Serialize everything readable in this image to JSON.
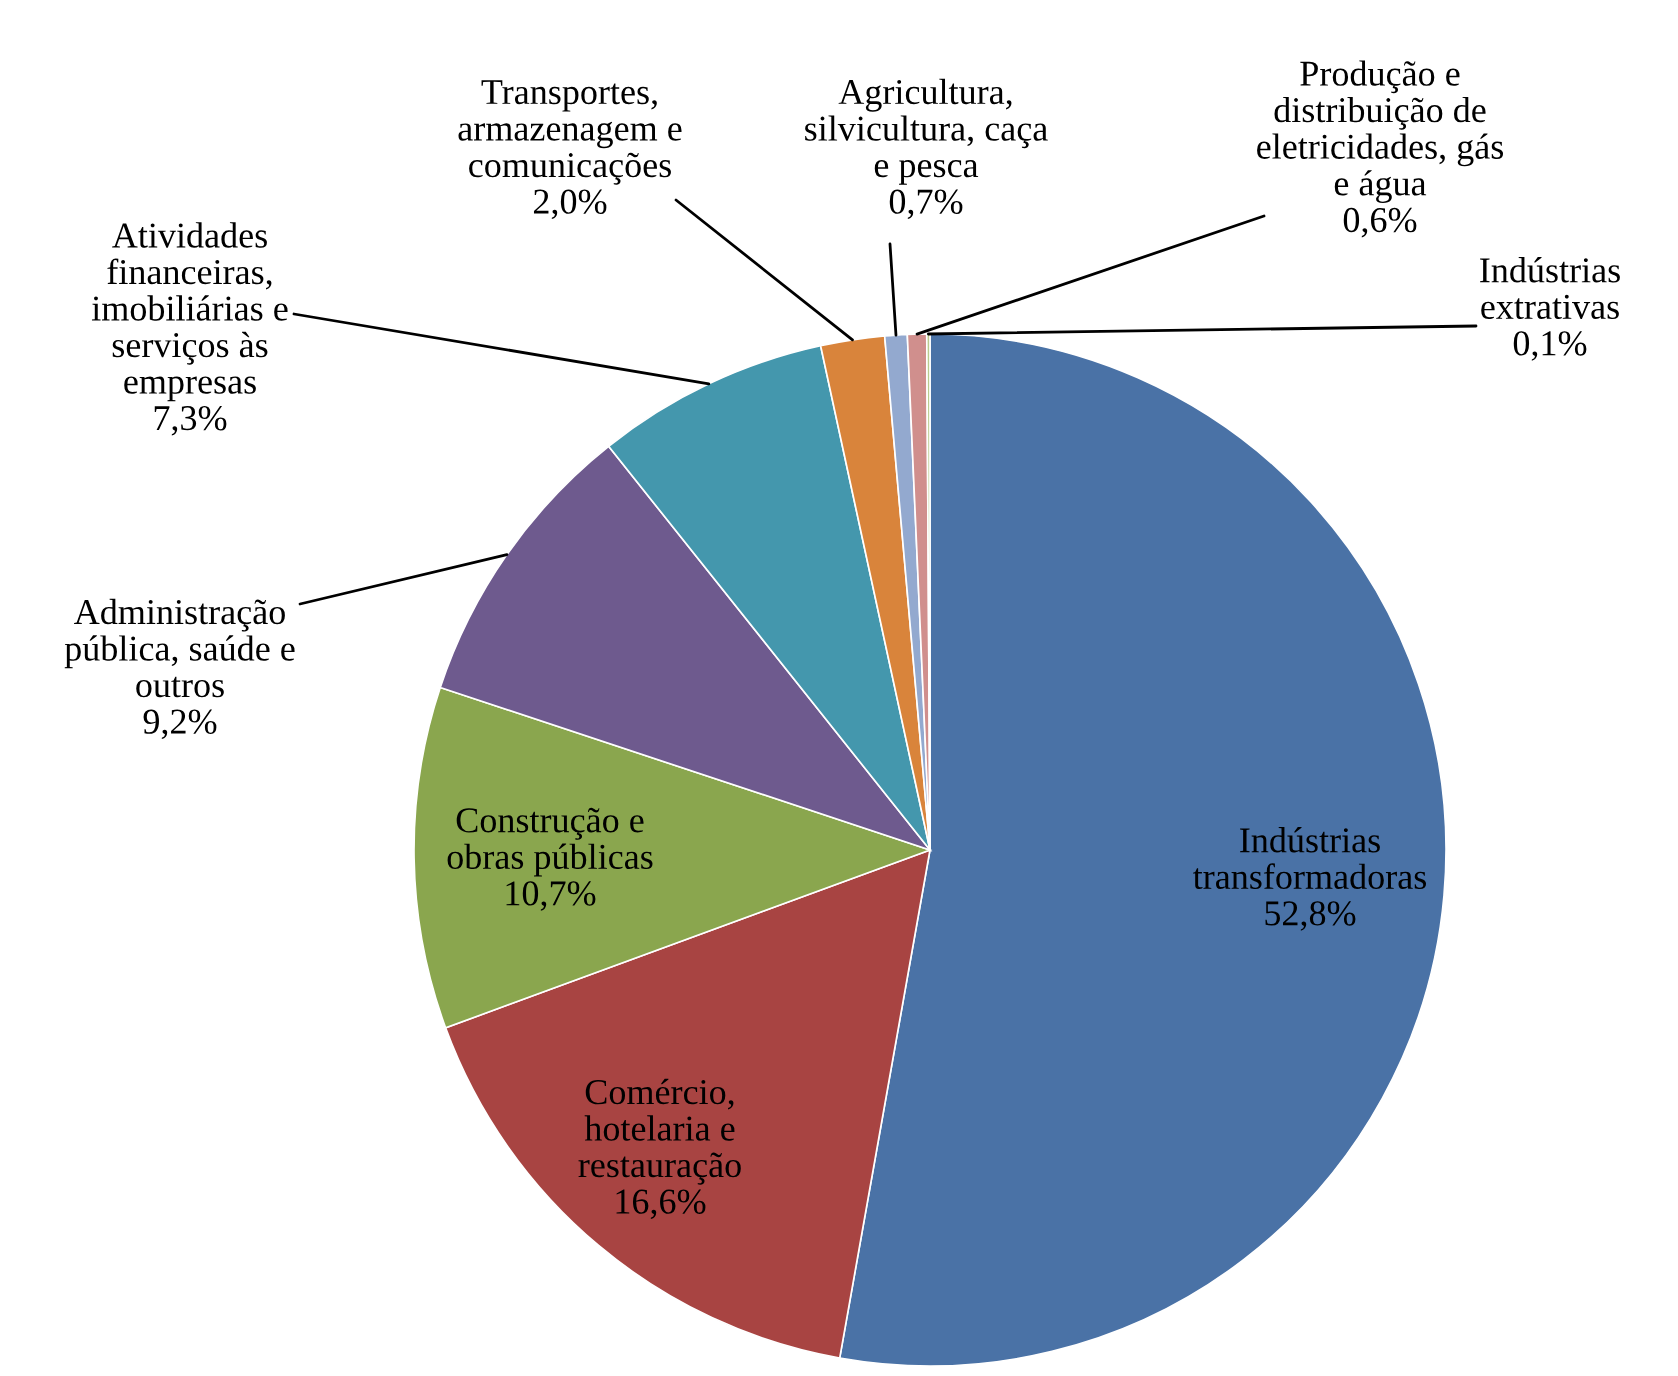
{
  "chart_data": {
    "type": "pie",
    "categories": [
      "Indústrias\ntransformadoras",
      "Comércio,\nhotelaria e\nrestauração",
      "Construção e\nobras públicas",
      "Administração\npública, saúde e\noutros",
      "Atividades\nfinanceiras,\nimobiliárias e\nserviços às\nempresas",
      "Transportes,\narmazenagem e\ncomunicações",
      "Agricultura,\nsilvicultura, caça\ne pesca",
      "Produção e\ndistribuição de\neletricidades, gás\ne água",
      "Indústrias\nextrativas"
    ],
    "values": [
      52.8,
      16.6,
      10.7,
      9.2,
      7.3,
      2.0,
      0.7,
      0.6,
      0.1
    ],
    "value_labels": [
      "52,8%",
      "16,6%",
      "10,7%",
      "9,2%",
      "7,3%",
      "2,0%",
      "0,7%",
      "0,6%",
      "0,1%"
    ],
    "colors": [
      "#4a72a6",
      "#a84442",
      "#8aa64e",
      "#6e5a8e",
      "#4497ad",
      "#d9843b",
      "#93a9cf",
      "#d08f8d",
      "#b9cc8e"
    ],
    "legend": false
  }
}
